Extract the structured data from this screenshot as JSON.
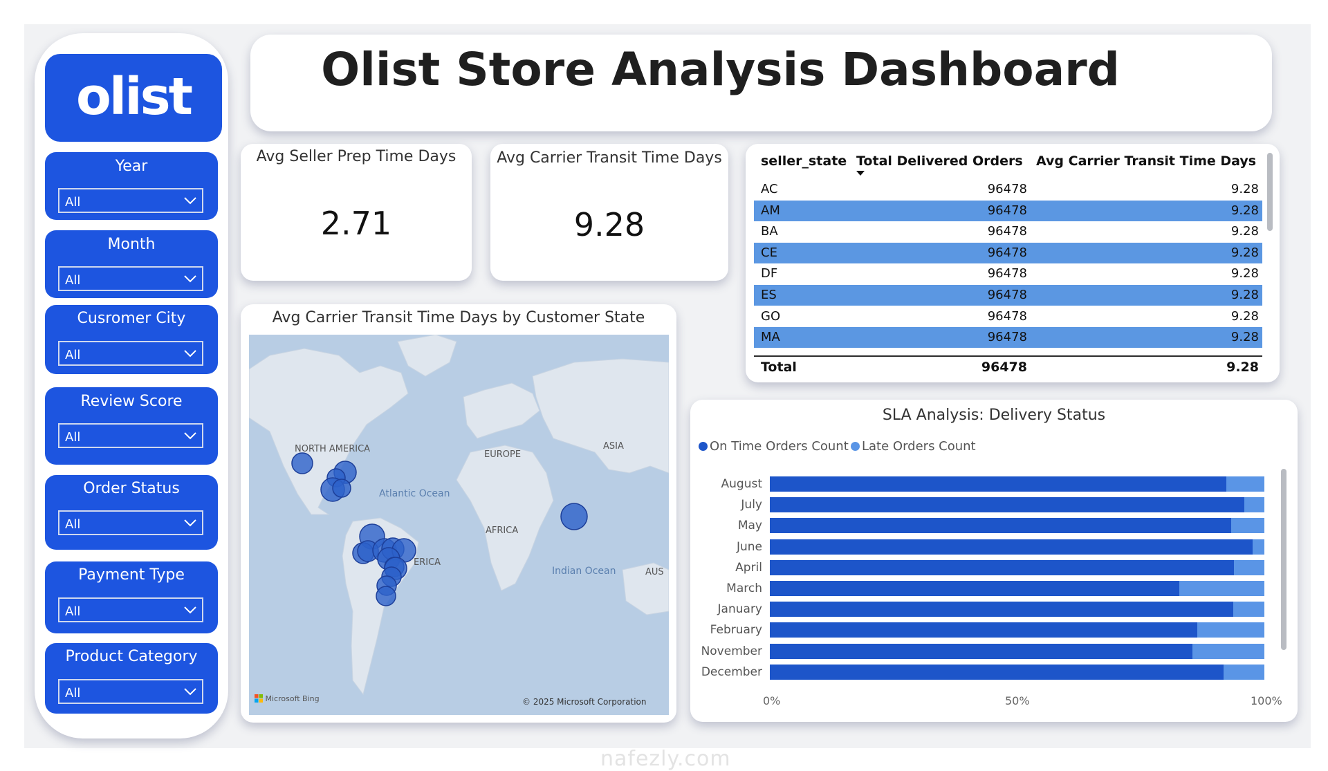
{
  "dashboard": {
    "title": "Olist Store Analysis Dashboard"
  },
  "logo": {
    "text": "olist",
    "color": "#1d55e0"
  },
  "filters": [
    {
      "label": "Year",
      "value": "All"
    },
    {
      "label": "Month",
      "value": "All"
    },
    {
      "label": "Cusromer City",
      "value": "All"
    },
    {
      "label": "Review Score",
      "value": "All"
    },
    {
      "label": "Order Status",
      "value": "All"
    },
    {
      "label": "Payment Type",
      "value": "All"
    },
    {
      "label": "Product Category",
      "value": "All"
    }
  ],
  "kpis": [
    {
      "label": "Avg Seller Prep Time Days",
      "value": "2.71"
    },
    {
      "label": "Avg Carrier Transit Time Days",
      "value": "9.28"
    }
  ],
  "table": {
    "columns": [
      "seller_state",
      "Total Delivered Orders",
      "Avg Carrier Transit Time Days"
    ],
    "rows": [
      [
        "AC",
        "96478",
        "9.28"
      ],
      [
        "AM",
        "96478",
        "9.28"
      ],
      [
        "BA",
        "96478",
        "9.28"
      ],
      [
        "CE",
        "96478",
        "9.28"
      ],
      [
        "DF",
        "96478",
        "9.28"
      ],
      [
        "ES",
        "96478",
        "9.28"
      ],
      [
        "GO",
        "96478",
        "9.28"
      ],
      [
        "MA",
        "96478",
        "9.28"
      ]
    ],
    "total": [
      "Total",
      "96478",
      "9.28"
    ]
  },
  "map": {
    "title": "Avg Carrier Transit Time Days by Customer State",
    "labels": {
      "north_america": "NORTH AMERICA",
      "europe": "EUROPE",
      "asia": "ASIA",
      "africa": "AFRICA",
      "south_america": "ERICA",
      "atlantic": "Atlantic Ocean",
      "indian": "Indian Ocean",
      "aus": "AUS"
    },
    "attribution": "Microsoft Bing",
    "copyright": "© 2025 Microsoft Corporation"
  },
  "sla": {
    "title": "SLA Analysis: Delivery Status",
    "colors": {
      "on_time": "#1d55c9",
      "late": "#5a95e6"
    }
  },
  "chart_data": {
    "type": "bar",
    "orientation": "horizontal",
    "stacked": "100%",
    "title": "SLA Analysis: Delivery Status",
    "categories": [
      "August",
      "July",
      "May",
      "June",
      "April",
      "March",
      "January",
      "February",
      "November",
      "December"
    ],
    "series": [
      {
        "name": "On Time Orders Count",
        "values": [
          92.3,
          95.9,
          93.3,
          97.6,
          93.9,
          82.8,
          93.7,
          86.4,
          85.5,
          91.7
        ]
      },
      {
        "name": "Late Orders Count",
        "values": [
          7.7,
          4.1,
          6.7,
          2.4,
          6.1,
          17.2,
          6.3,
          13.6,
          14.5,
          8.3
        ]
      }
    ],
    "xticks": [
      "0%",
      "50%",
      "100%"
    ],
    "xlim": [
      0,
      100
    ],
    "legend": "top-left",
    "grid": false
  },
  "watermark": "nafezly.com"
}
